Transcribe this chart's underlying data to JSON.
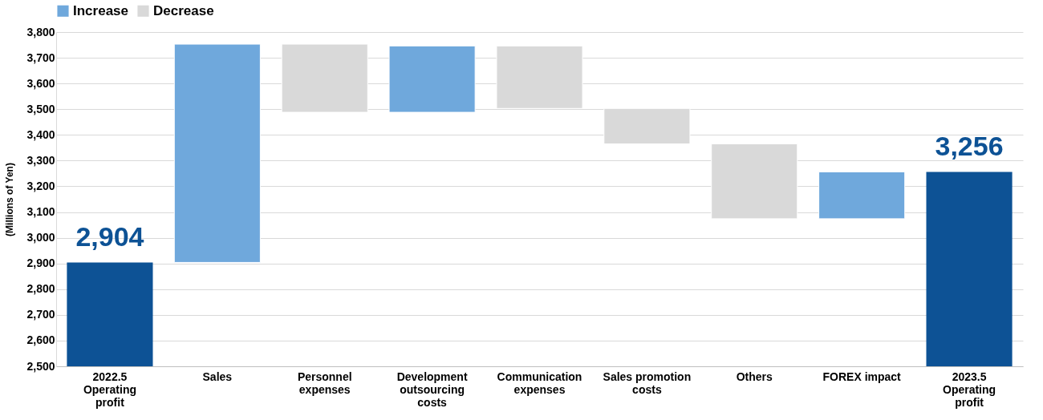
{
  "chart_data": {
    "type": "bar",
    "ylabel": "(Millions of Yen)",
    "categories": [
      "2022.5 Operating profit",
      "Sales",
      "Personnel expenses",
      "Development outsourcing costs",
      "Communication expenses",
      "Sales promotion costs",
      "Others",
      "FOREX impact",
      "2023.5 Operating profit"
    ],
    "series": [
      {
        "name": "Increase",
        "color": "#6fa8dc",
        "values": [
          null,
          849,
          null,
          258,
          null,
          null,
          null,
          182,
          null
        ],
        "base": [
          null,
          2904,
          null,
          3488,
          null,
          null,
          null,
          3074,
          null
        ]
      },
      {
        "name": "Decrease",
        "color": "#d9d9d9",
        "values": [
          null,
          null,
          265,
          null,
          243,
          138,
          291,
          null,
          null
        ],
        "base": [
          null,
          null,
          3488,
          null,
          3503,
          3365,
          3074,
          null,
          null
        ]
      },
      {
        "color": "#0d5295",
        "values": [
          2904,
          null,
          null,
          null,
          null,
          null,
          null,
          null,
          3256
        ],
        "value_labels": [
          "2,904",
          null,
          null,
          null,
          null,
          null,
          null,
          null,
          "3,256"
        ]
      }
    ],
    "stacked": true,
    "ylim": [
      2500,
      3800
    ],
    "yticks": [
      {
        "value": 2500,
        "label": "2,500"
      },
      {
        "value": 2600,
        "label": "2,600"
      },
      {
        "value": 2700,
        "label": "2,700"
      },
      {
        "value": 2800,
        "label": "2,800"
      },
      {
        "value": 2900,
        "label": "2,900"
      },
      {
        "value": 3000,
        "label": "3,000"
      },
      {
        "value": 3100,
        "label": "3,100"
      },
      {
        "value": 3200,
        "label": "3,200"
      },
      {
        "value": 3300,
        "label": "3,300"
      },
      {
        "value": 3400,
        "label": "3,400"
      },
      {
        "value": 3500,
        "label": "3,500"
      },
      {
        "value": 3600,
        "label": "3,600"
      },
      {
        "value": 3700,
        "label": "3,700"
      },
      {
        "value": 3800,
        "label": "3,800"
      }
    ],
    "grid": "y",
    "legend": "top"
  }
}
